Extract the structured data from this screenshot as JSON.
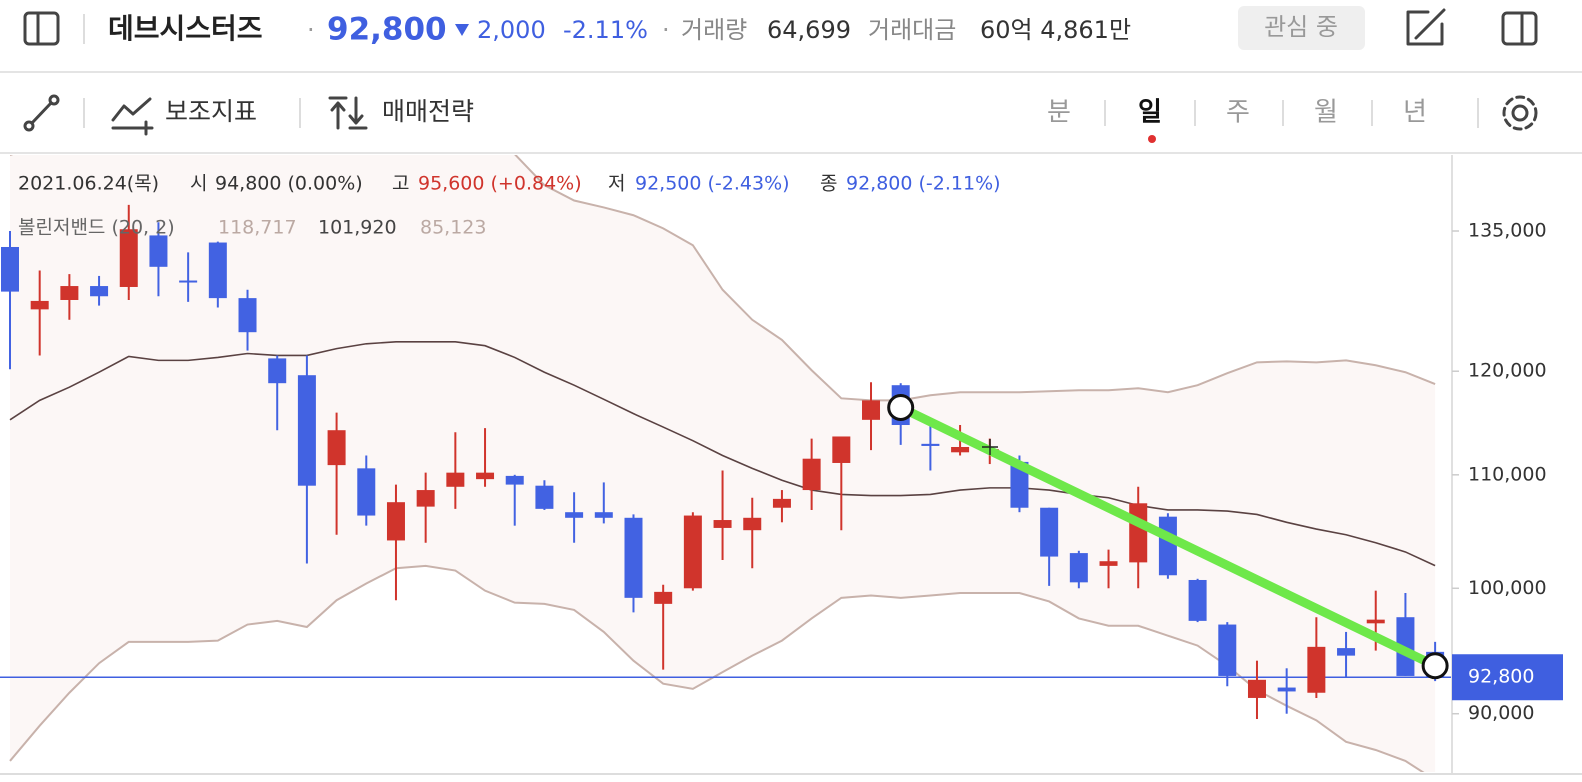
{
  "header": {
    "name": "데브시스터즈",
    "price": "92,800",
    "change": "2,000",
    "change_pct": "-2.11%",
    "volume_label": "거래량",
    "volume": "64,699",
    "amount_label": "거래대금",
    "amount": "60억 4,861만",
    "watch_button": "관심 중"
  },
  "toolbar": {
    "indicators": "보조지표",
    "strategy": "매매전략",
    "periods": [
      "분",
      "일",
      "주",
      "월",
      "년"
    ],
    "active_period": "일"
  },
  "chart_info": {
    "date": "2021.06.24(목)",
    "open_label": "시",
    "open": "94,800 (0.00%)",
    "high_label": "고",
    "high": "95,600 (+0.84%)",
    "low_label": "저",
    "low": "92,500 (-2.43%)",
    "close_label": "종",
    "close": "92,800 (-2.11%)"
  },
  "chart_data": {
    "type": "candlestick",
    "log_scale": true,
    "up_color": "#d0342c",
    "down_color": "#4262e2",
    "categories": [
      null,
      null,
      null,
      null,
      null,
      null,
      null,
      null,
      null,
      null,
      null,
      null,
      null,
      null,
      null,
      null,
      null,
      null,
      null,
      null,
      null,
      null,
      null,
      null,
      null,
      null,
      null,
      null,
      null,
      null,
      null,
      null,
      null,
      null,
      null,
      null,
      null,
      null,
      null,
      null,
      null,
      null,
      null,
      null,
      null,
      null,
      null,
      null,
      null
    ],
    "open": [
      133200,
      126400,
      127400,
      128900,
      128800,
      134500,
      129500,
      133700,
      127600,
      121300,
      119600,
      110900,
      110600,
      104100,
      107100,
      108900,
      109600,
      109900,
      109000,
      106600,
      106600,
      106100,
      98700,
      100000,
      105200,
      105000,
      107000,
      108600,
      111100,
      115200,
      118600,
      112900,
      112100,
      112300,
      111200,
      107000,
      103000,
      101900,
      102200,
      106200,
      100700,
      97000,
      91200,
      92000,
      91600,
      95100,
      97100,
      97600,
      94800
    ],
    "high": [
      135000,
      130600,
      130200,
      130000,
      138000,
      136000,
      132600,
      133800,
      128500,
      121600,
      121600,
      115900,
      111800,
      109100,
      110200,
      114000,
      114400,
      110000,
      109500,
      108400,
      109300,
      106400,
      100300,
      106600,
      110400,
      107900,
      108600,
      113400,
      113600,
      118900,
      118800,
      114900,
      114700,
      113400,
      111800,
      107000,
      103200,
      103300,
      108900,
      106500,
      100800,
      97200,
      94100,
      93500,
      97600,
      96400,
      99800,
      99600,
      95600
    ],
    "low": [
      120200,
      121600,
      125300,
      126800,
      127400,
      127800,
      127200,
      126600,
      122100,
      114200,
      102100,
      104600,
      105400,
      99000,
      103900,
      106900,
      108900,
      105400,
      106800,
      103900,
      105600,
      98000,
      93400,
      99800,
      102400,
      101700,
      105700,
      106800,
      105000,
      112300,
      112800,
      110400,
      111800,
      111000,
      106600,
      100200,
      100000,
      100000,
      100000,
      100800,
      97200,
      92100,
      89600,
      90000,
      91200,
      92800,
      94900,
      92900,
      92500
    ],
    "close": [
      128300,
      127300,
      128900,
      127800,
      135200,
      131000,
      129300,
      127600,
      124000,
      118800,
      109000,
      114200,
      106300,
      107500,
      108600,
      110200,
      110200,
      109100,
      106900,
      106100,
      106100,
      99200,
      99700,
      106300,
      105900,
      106100,
      107800,
      111500,
      113600,
      117100,
      114700,
      112700,
      112600,
      112400,
      107000,
      102700,
      100500,
      102300,
      107400,
      101100,
      97300,
      92900,
      92600,
      91700,
      95200,
      94500,
      97400,
      92900,
      92800
    ],
    "bollinger": {
      "label": "볼린저밴드 (20, 2)",
      "band_color": "#c8b2ab",
      "middle_color": "#5a4242",
      "fill": "#fcf7f6",
      "upper": [
        143900,
        145100,
        145200,
        145900,
        147400,
        146600,
        146600,
        147100,
        146600,
        145900,
        146400,
        145600,
        145200,
        144300,
        144100,
        144500,
        145400,
        144000,
        140300,
        138500,
        137700,
        136800,
        135300,
        133400,
        128500,
        125300,
        123200,
        120100,
        117300,
        117100,
        117100,
        117600,
        117900,
        117900,
        117900,
        118000,
        118100,
        118100,
        118300,
        117900,
        118600,
        119800,
        120900,
        121000,
        120900,
        121100,
        120600,
        119900,
        118717
      ],
      "middle": [
        115200,
        117100,
        118400,
        119900,
        121500,
        121100,
        121100,
        121400,
        121800,
        121600,
        121600,
        122300,
        122800,
        123000,
        123000,
        123000,
        122600,
        121400,
        119900,
        118600,
        117200,
        115800,
        114500,
        113200,
        111800,
        110600,
        109500,
        108600,
        108200,
        108100,
        108100,
        108200,
        108600,
        108800,
        108800,
        108600,
        108200,
        107900,
        107200,
        106800,
        106800,
        106700,
        106400,
        105700,
        105100,
        104600,
        103900,
        103100,
        101920
      ],
      "lower": [
        86500,
        89100,
        91600,
        93900,
        95600,
        95600,
        95600,
        95700,
        97000,
        97300,
        96800,
        99000,
        100400,
        101700,
        101900,
        101500,
        99800,
        98800,
        98700,
        98200,
        96400,
        94100,
        92300,
        91900,
        93200,
        94500,
        95700,
        97500,
        99200,
        99400,
        99200,
        99400,
        99600,
        99600,
        99600,
        98900,
        97500,
        96900,
        96900,
        96100,
        95300,
        93700,
        91800,
        90600,
        89500,
        87900,
        87300,
        86500,
        85123
      ],
      "upper_label": "118,717",
      "middle_label": "101,920",
      "lower_label": "85,123"
    },
    "price_line": {
      "value": 92800,
      "label": "92,800",
      "color": "#3f5fe0"
    },
    "trendline": {
      "start": 116400,
      "end": 93700,
      "color": "#6ee84a"
    },
    "ylim": [
      85700,
      143900
    ],
    "yticks": [
      {
        "value": 90000,
        "label": "90,000"
      },
      {
        "value": 100000,
        "label": "100,000"
      },
      {
        "value": 110000,
        "label": "110,000"
      },
      {
        "value": 120000,
        "label": "120,000"
      },
      {
        "value": 135000,
        "label": "135,000"
      }
    ]
  }
}
